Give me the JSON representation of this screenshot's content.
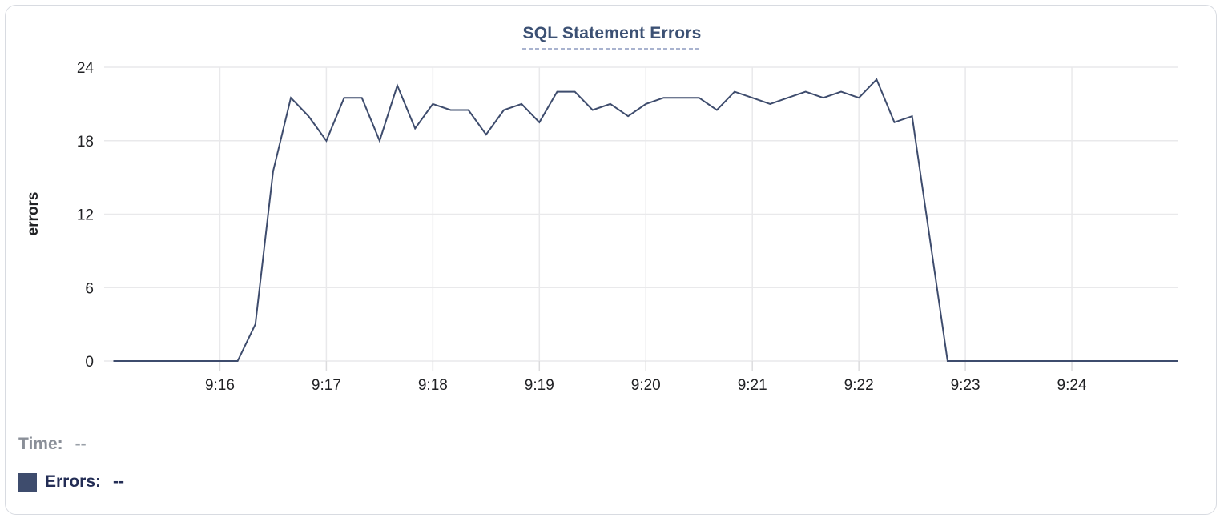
{
  "chart_data": {
    "type": "line",
    "title": "SQL Statement Errors",
    "xlabel": "",
    "ylabel": "errors",
    "ylim": [
      0,
      24
    ],
    "y_ticks": [
      0,
      6,
      12,
      18,
      24
    ],
    "x_ticks": [
      "9:16",
      "9:17",
      "9:18",
      "9:19",
      "9:20",
      "9:21",
      "9:22",
      "9:23",
      "9:24"
    ],
    "x_start": "9:15:00",
    "x_end": "9:25:00",
    "point_interval_seconds": 10,
    "grid": true,
    "legend_position": "bottom-left",
    "series": [
      {
        "name": "Errors",
        "color": "#3e4c6d",
        "values": [
          0,
          0,
          0,
          0,
          0,
          0,
          0,
          0,
          3,
          15.5,
          21.5,
          20,
          18,
          21.5,
          21.5,
          18,
          22.5,
          19,
          21,
          20.5,
          20.5,
          18.5,
          20.5,
          21,
          19.5,
          22,
          22,
          20.5,
          21,
          20,
          21,
          21.5,
          21.5,
          21.5,
          20.5,
          22,
          21.5,
          21,
          21.5,
          22,
          21.5,
          22,
          21.5,
          23,
          19.5,
          20,
          10,
          0,
          0,
          0,
          0,
          0,
          0,
          0,
          0,
          0,
          0,
          0,
          0,
          0,
          0
        ]
      }
    ]
  },
  "legend": {
    "time_label": "Time:",
    "time_value": "--",
    "errors_label": "Errors:",
    "errors_value": "--",
    "swatch_color": "#3e4c6d"
  },
  "colors": {
    "title": "#3c5174",
    "title_underline": "#a9b3cf",
    "line": "#3e4c6d",
    "grid": "#e9e9eb",
    "axis_tick": "#dcdcde",
    "tick_text": "#202124",
    "axis_title_text": "#111111",
    "legend_time": "#8a8f98",
    "legend_errors": "#232d55",
    "card_border": "#d8dbe1"
  }
}
